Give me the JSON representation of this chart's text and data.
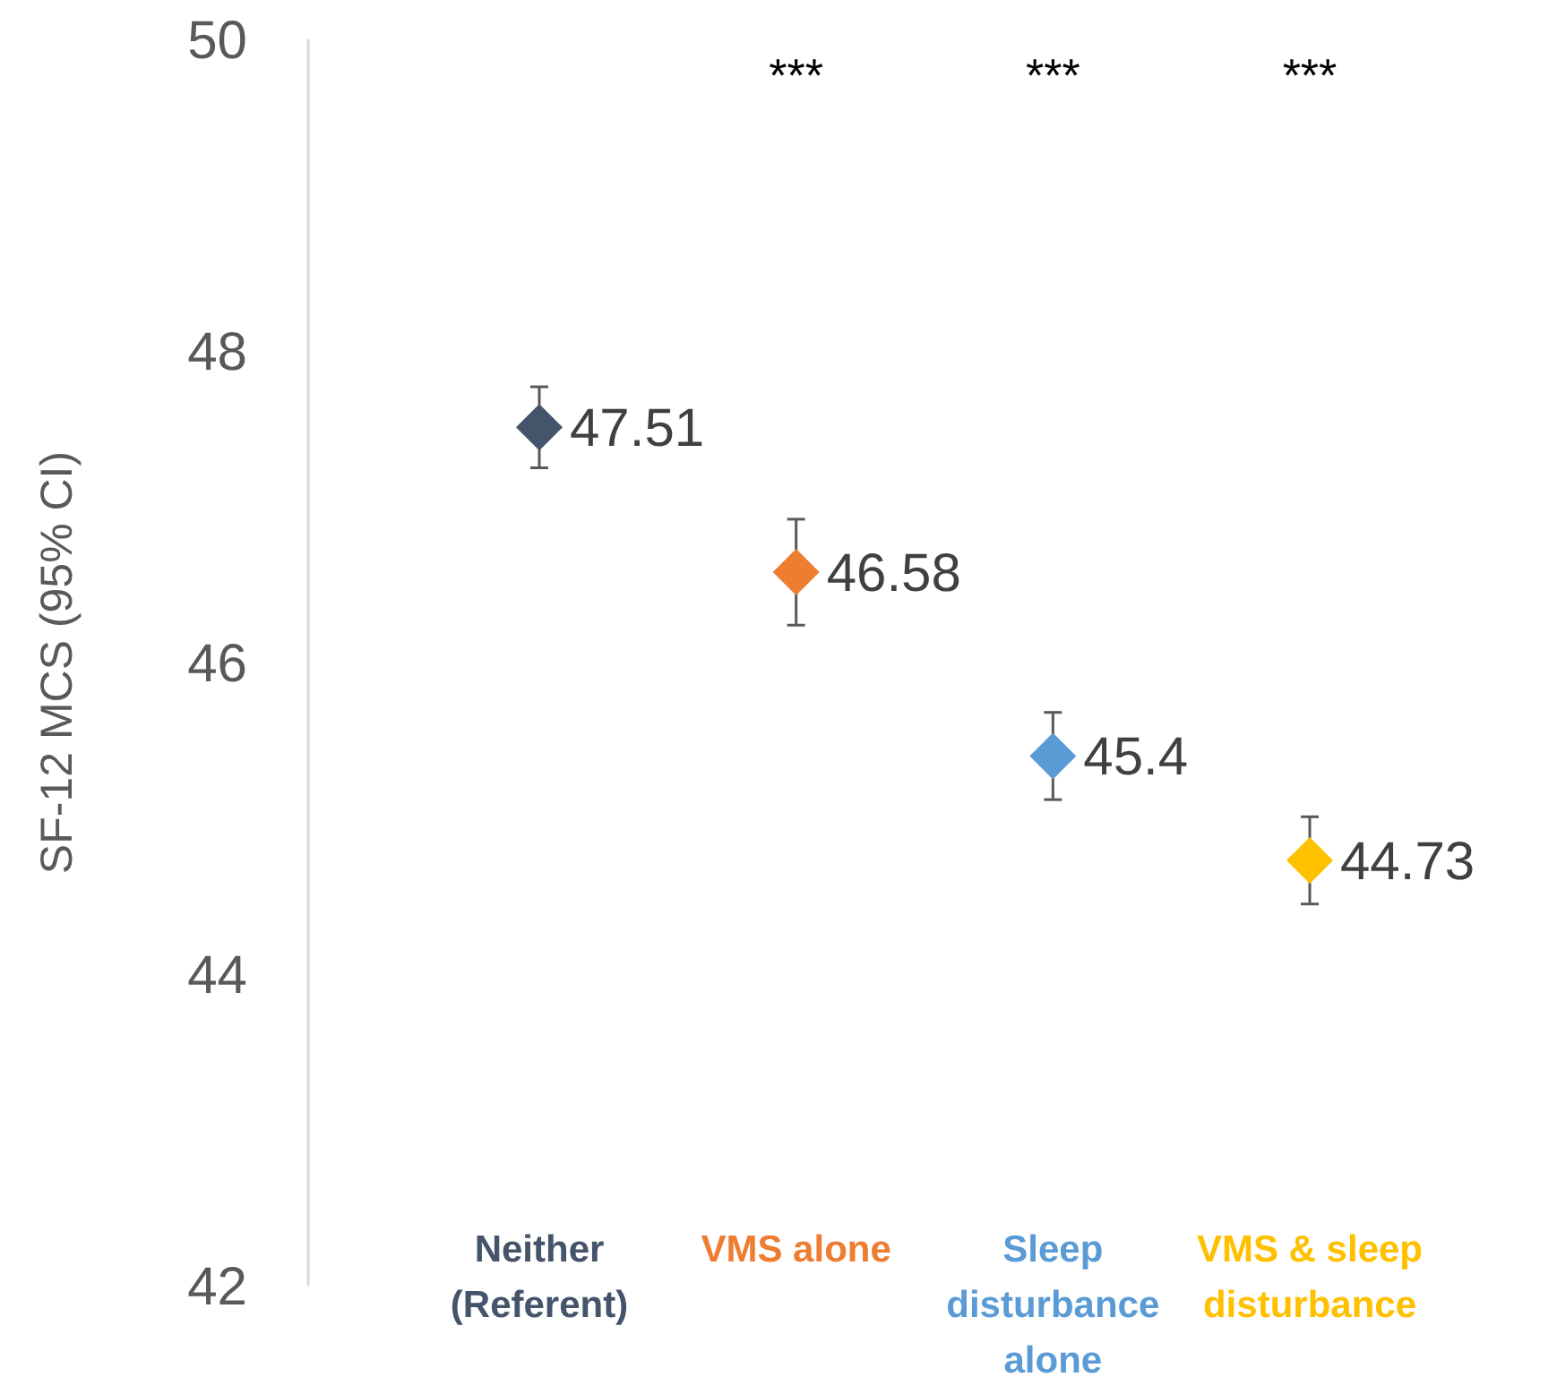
{
  "chart_data": {
    "type": "scatter",
    "ylabel": "SF-12 MCS (95% CI)",
    "categories": [
      "Neither (Referent)",
      "VMS alone",
      "Sleep disturbance alone",
      "VMS & sleep disturbance"
    ],
    "values": [
      47.51,
      46.58,
      45.4,
      44.73
    ],
    "errors": [
      0.26,
      0.34,
      0.28,
      0.28
    ],
    "colors": [
      "#44546a",
      "#ed7d31",
      "#5b9bd5",
      "#ffc000"
    ],
    "ylim": [
      42,
      50
    ],
    "yticks": [
      42,
      44,
      46,
      48,
      50
    ],
    "grid": false,
    "marker": "diamond",
    "data_labels": true,
    "annotations": [
      "***",
      "***",
      "***"
    ]
  }
}
